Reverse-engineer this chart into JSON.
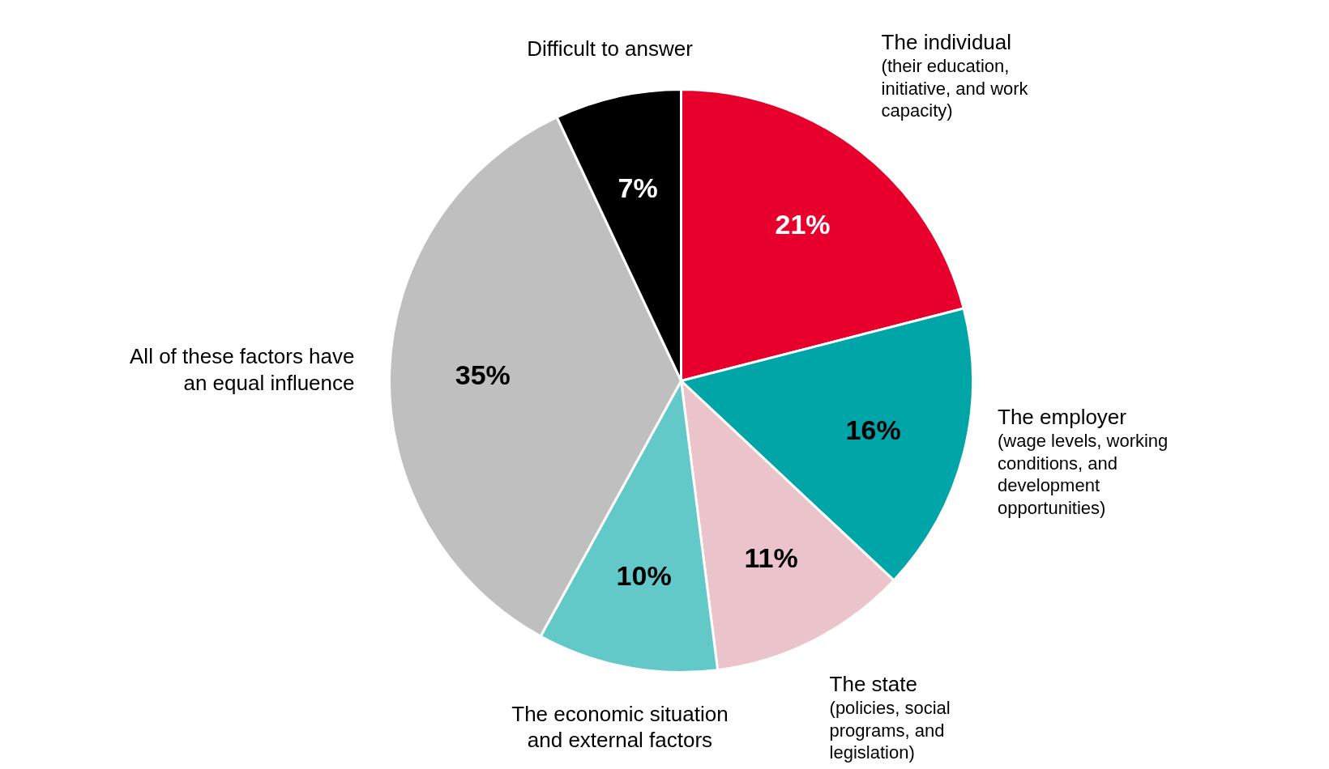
{
  "chart_data": {
    "type": "pie",
    "categories": [
      "The individual (their education, initiative, and work capacity)",
      "The employer (wage levels, working conditions, and development opportunities)",
      "The state (policies, social programs, and legislation)",
      "The economic situation and external factors",
      "All of these factors have an equal influence",
      "Difficult to answer"
    ],
    "values": [
      21,
      16,
      11,
      10,
      35,
      7
    ],
    "colors": [
      "#e8002d",
      "#00a5a8",
      "#ebc3cb",
      "#62c8c8",
      "#bfbfbf",
      "#000000"
    ],
    "value_labels": [
      "21%",
      "16%",
      "11%",
      "10%",
      "35%",
      "7%"
    ]
  }
}
